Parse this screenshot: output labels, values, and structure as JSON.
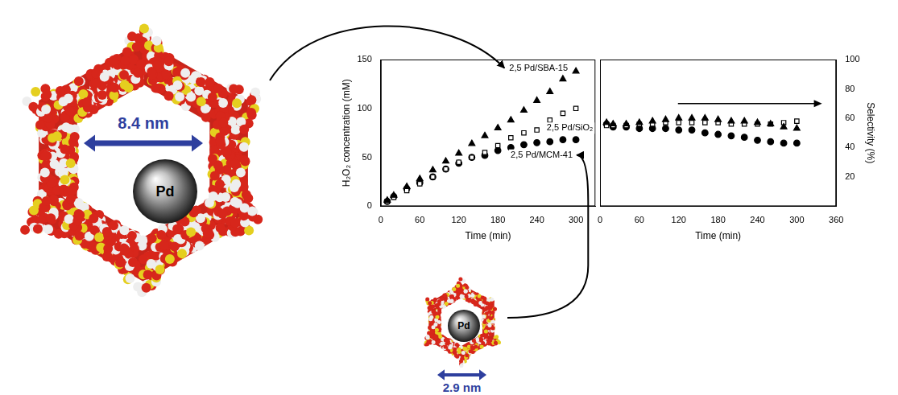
{
  "diagram": {
    "pores": [
      {
        "particle": "Pd",
        "pore_size": "8.4 nm"
      },
      {
        "particle": "Pd",
        "pore_size": "2.9 nm"
      }
    ]
  },
  "chart_data": [
    {
      "type": "scatter",
      "x_label": "Time (min)",
      "y_label": "H₂O₂ concentration (mM)",
      "x": [
        10,
        20,
        40,
        60,
        80,
        100,
        120,
        140,
        160,
        180,
        200,
        220,
        240,
        260,
        280,
        300
      ],
      "series": [
        {
          "name": "2,5 Pd/SBA-15",
          "color": "#000000",
          "marker": "triangle",
          "values": [
            6,
            11,
            20,
            28,
            37,
            46,
            54,
            64,
            72,
            80,
            88,
            98,
            108,
            117,
            130,
            138
          ]
        },
        {
          "name": "2,5 Pd/SiO₂",
          "color": "#000000",
          "marker": "square-open",
          "values": [
            5,
            9,
            16,
            23,
            30,
            38,
            45,
            50,
            55,
            62,
            70,
            75,
            78,
            88,
            95,
            100
          ]
        },
        {
          "name": "2,5 Pd/MCM-41",
          "color": "#000000",
          "marker": "circle",
          "values": [
            5,
            10,
            18,
            24,
            30,
            38,
            44,
            50,
            52,
            57,
            60,
            63,
            65,
            66,
            68,
            68
          ]
        }
      ],
      "xlim": [
        0,
        330
      ],
      "xticks": [
        0,
        60,
        120,
        180,
        240,
        300
      ],
      "ylim": [
        0,
        150
      ],
      "yticks": [
        0,
        50,
        100,
        150
      ],
      "grid": false
    },
    {
      "type": "scatter",
      "x_label": "Time (min)",
      "y_label": "Selectivity (%)",
      "x": [
        10,
        20,
        40,
        60,
        80,
        100,
        120,
        140,
        160,
        180,
        200,
        220,
        240,
        260,
        280,
        300
      ],
      "series": [
        {
          "color": "#000000",
          "marker": "triangle",
          "values": [
            57,
            56,
            56,
            57,
            58,
            59,
            60,
            60,
            60,
            59,
            58,
            58,
            57,
            56,
            54,
            53
          ]
        },
        {
          "color": "#000000",
          "marker": "square-open",
          "values": [
            55,
            55,
            55,
            56,
            56,
            57,
            57,
            57,
            57,
            57,
            56,
            56,
            56,
            56,
            57,
            58
          ]
        },
        {
          "color": "#000000",
          "marker": "circle",
          "values": [
            56,
            54,
            54,
            53,
            53,
            53,
            52,
            52,
            50,
            49,
            48,
            47,
            45,
            44,
            43,
            43
          ]
        }
      ],
      "xlim": [
        0,
        360
      ],
      "xticks": [
        0,
        60,
        120,
        180,
        240,
        300,
        360
      ],
      "ylim": [
        0,
        100
      ],
      "yticks": [
        20,
        40,
        60,
        80,
        100
      ],
      "grid": false
    }
  ]
}
